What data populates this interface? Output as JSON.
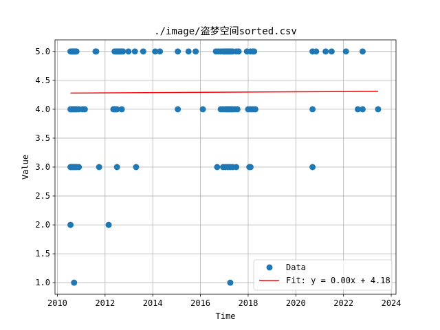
{
  "chart_data": {
    "type": "scatter",
    "title": "./image/盗梦空间sorted.csv",
    "xlabel": "Time",
    "ylabel": "Value",
    "xlim": [
      2009.9,
      2024.2
    ],
    "ylim": [
      0.8,
      5.2
    ],
    "xticks": [
      2010,
      2012,
      2014,
      2016,
      2018,
      2020,
      2022,
      2024
    ],
    "yticks": [
      1.0,
      1.5,
      2.0,
      2.5,
      3.0,
      3.5,
      4.0,
      4.5,
      5.0
    ],
    "xtick_labels": [
      "2010",
      "2012",
      "2014",
      "2016",
      "2018",
      "2020",
      "2022",
      "2024"
    ],
    "ytick_labels": [
      "1.0",
      "1.5",
      "2.0",
      "2.5",
      "3.0",
      "3.5",
      "4.0",
      "4.5",
      "5.0"
    ],
    "grid": true,
    "legend_position": "lower-right",
    "series": [
      {
        "name": "Data",
        "kind": "scatter",
        "color": "#1f77b4",
        "x": [
          2010.55,
          2010.6,
          2010.63,
          2010.66,
          2010.7,
          2010.73,
          2010.76,
          2010.8,
          2011.6,
          2011.63,
          2012.4,
          2012.45,
          2012.5,
          2012.55,
          2012.6,
          2012.65,
          2012.7,
          2012.75,
          2012.98,
          2013.25,
          2013.6,
          2014.1,
          2014.3,
          2015.05,
          2015.5,
          2015.8,
          2016.65,
          2016.75,
          2016.85,
          2016.95,
          2017.0,
          2017.05,
          2017.1,
          2017.15,
          2017.2,
          2017.25,
          2017.3,
          2017.35,
          2017.5,
          2017.6,
          2017.95,
          2018.1,
          2018.2,
          2018.25,
          2020.7,
          2020.85,
          2021.25,
          2021.5,
          2022.1,
          2022.8,
          2010.55,
          2010.6,
          2010.65,
          2010.7,
          2010.75,
          2010.8,
          2010.9,
          2011.05,
          2011.15,
          2012.35,
          2012.4,
          2012.45,
          2012.5,
          2012.7,
          2015.05,
          2016.1,
          2016.85,
          2016.95,
          2017.05,
          2017.1,
          2017.15,
          2017.2,
          2017.25,
          2017.3,
          2017.35,
          2017.45,
          2017.55,
          2018.0,
          2018.1,
          2018.2,
          2018.3,
          2020.7,
          2022.6,
          2022.8,
          2023.45,
          2010.55,
          2010.6,
          2010.65,
          2010.7,
          2010.75,
          2010.8,
          2010.9,
          2011.75,
          2012.5,
          2013.3,
          2016.7,
          2016.95,
          2017.05,
          2017.15,
          2017.25,
          2017.35,
          2017.5,
          2018.05,
          2018.1,
          2020.7,
          2010.55,
          2012.15,
          2010.7,
          2017.25
        ],
        "y": [
          5,
          5,
          5,
          5,
          5,
          5,
          5,
          5,
          5,
          5,
          5,
          5,
          5,
          5,
          5,
          5,
          5,
          5,
          5,
          5,
          5,
          5,
          5,
          5,
          5,
          5,
          5,
          5,
          5,
          5,
          5,
          5,
          5,
          5,
          5,
          5,
          5,
          5,
          5,
          5,
          5,
          5,
          5,
          5,
          5,
          5,
          5,
          5,
          5,
          5,
          4,
          4,
          4,
          4,
          4,
          4,
          4,
          4,
          4,
          4,
          4,
          4,
          4,
          4,
          4,
          4,
          4,
          4,
          4,
          4,
          4,
          4,
          4,
          4,
          4,
          4,
          4,
          4,
          4,
          4,
          4,
          4,
          4,
          4,
          4,
          3,
          3,
          3,
          3,
          3,
          3,
          3,
          3,
          3,
          3,
          3,
          3,
          3,
          3,
          3,
          3,
          3,
          3,
          3,
          3,
          2,
          2,
          1,
          1
        ]
      },
      {
        "name": "Fit: y = 0.00x + 4.18",
        "kind": "line",
        "color": "#ff0000",
        "x": [
          2010.55,
          2023.45
        ],
        "y": [
          4.28,
          4.31
        ]
      }
    ]
  }
}
